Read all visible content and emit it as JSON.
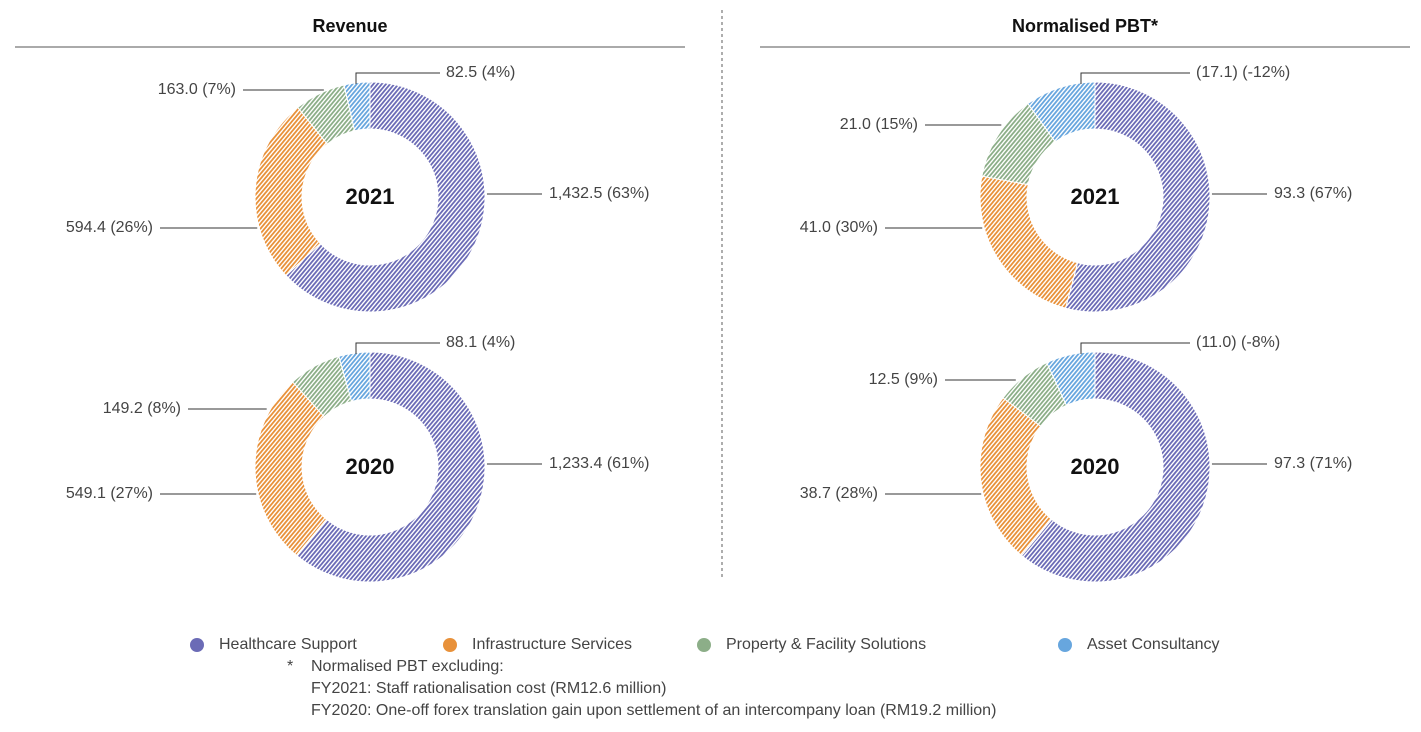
{
  "headings": [
    "Revenue",
    "Normalised PBT*"
  ],
  "legend": [
    {
      "name": "Healthcare Support",
      "color": "#6b6bb6"
    },
    {
      "name": "Infrastructure Services",
      "color": "#e8913a"
    },
    {
      "name": "Property & Facility Solutions",
      "color": "#8cae88"
    },
    {
      "name": "Asset Consultancy",
      "color": "#67a6de"
    }
  ],
  "chart_data": [
    {
      "type": "donut",
      "center_label": "2021",
      "values": [
        1432.5,
        594.4,
        163.0,
        82.5
      ],
      "value_labels": [
        "1,432.5 (63%)",
        "594.4 (26%)",
        "163.0 (7%)",
        "82.5 (4%)"
      ]
    },
    {
      "type": "donut",
      "center_label": "2020",
      "values": [
        1233.4,
        549.1,
        149.2,
        88.1
      ],
      "value_labels": [
        "1,233.4 (61%)",
        "549.1 (27%)",
        "149.2 (8%)",
        "88.1 (4%)"
      ]
    },
    {
      "type": "donut",
      "center_label": "2021",
      "values": [
        93.3,
        41.0,
        21.0,
        -17.1
      ],
      "value_labels": [
        "93.3 (67%)",
        "41.0 (30%)",
        "21.0 (15%)",
        "(17.1) (-12%)"
      ]
    },
    {
      "type": "donut",
      "center_label": "2020",
      "values": [
        97.3,
        38.7,
        12.5,
        -11.0
      ],
      "value_labels": [
        "97.3 (71%)",
        "38.7 (28%)",
        "12.5 (9%)",
        "(11.0) (-8%)"
      ]
    }
  ],
  "footnote": {
    "marker": "*",
    "lines": [
      "Normalised PBT excluding:",
      "FY2021: Staff rationalisation cost (RM12.6 million)",
      "FY2020: One-off forex translation gain upon settlement of an intercompany loan (RM19.2 million)"
    ]
  }
}
